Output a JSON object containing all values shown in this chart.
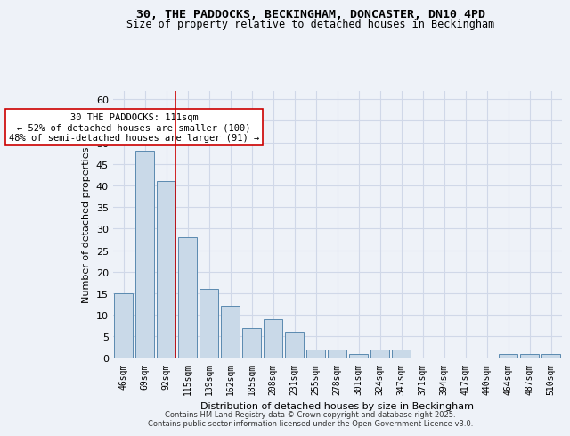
{
  "title_line1": "30, THE PADDOCKS, BECKINGHAM, DONCASTER, DN10 4PD",
  "title_line2": "Size of property relative to detached houses in Beckingham",
  "xlabel": "Distribution of detached houses by size in Beckingham",
  "ylabel": "Number of detached properties",
  "categories": [
    "46sqm",
    "69sqm",
    "92sqm",
    "115sqm",
    "139sqm",
    "162sqm",
    "185sqm",
    "208sqm",
    "231sqm",
    "255sqm",
    "278sqm",
    "301sqm",
    "324sqm",
    "347sqm",
    "371sqm",
    "394sqm",
    "417sqm",
    "440sqm",
    "464sqm",
    "487sqm",
    "510sqm"
  ],
  "values": [
    15,
    48,
    41,
    28,
    16,
    12,
    7,
    9,
    6,
    2,
    2,
    1,
    2,
    2,
    0,
    0,
    0,
    0,
    1,
    1,
    1
  ],
  "bar_color": "#c9d9e8",
  "bar_edgecolor": "#5a8ab0",
  "grid_color": "#d0d8e8",
  "background_color": "#eef2f8",
  "redline_x": 2,
  "redline_color": "#cc0000",
  "annotation_text": "30 THE PADDOCKS: 111sqm\n← 52% of detached houses are smaller (100)\n48% of semi-detached houses are larger (91) →",
  "annotation_box_color": "#ffffff",
  "annotation_box_edgecolor": "#cc0000",
  "footer_line1": "Contains HM Land Registry data © Crown copyright and database right 2025.",
  "footer_line2": "Contains public sector information licensed under the Open Government Licence v3.0.",
  "ylim": [
    0,
    62
  ],
  "yticks": [
    0,
    5,
    10,
    15,
    20,
    25,
    30,
    35,
    40,
    45,
    50,
    55,
    60
  ]
}
